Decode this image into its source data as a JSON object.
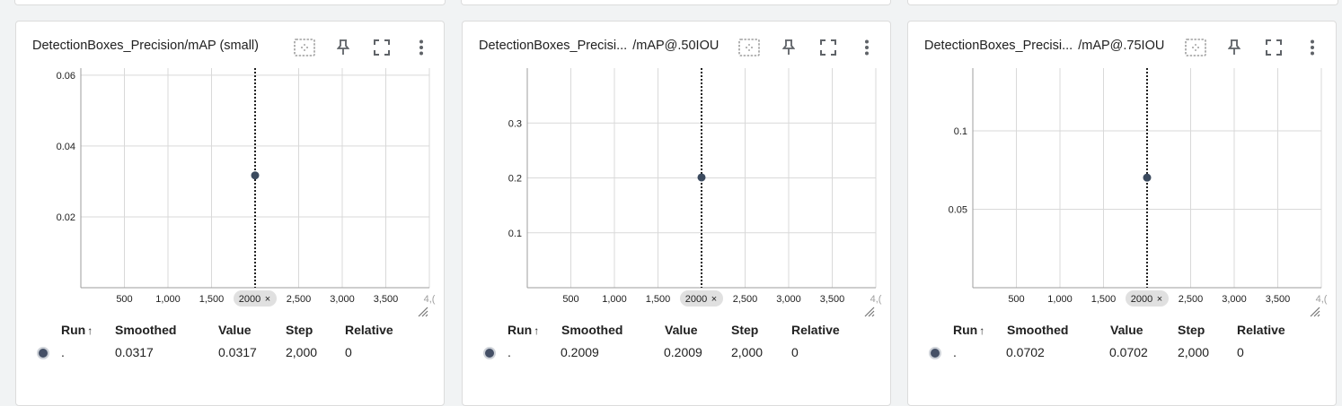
{
  "colors": {
    "accent": "#3b4a5e",
    "grid": "#d9d9d9",
    "axis": "#9e9e9e"
  },
  "icons": [
    "fit-domain-icon",
    "pin-icon",
    "fullscreen-icon",
    "more-vert-icon"
  ],
  "table_headers": {
    "run": "Run",
    "sort": "↑",
    "smoothed": "Smoothed",
    "value": "Value",
    "step": "Step",
    "relative": "Relative"
  },
  "cards": [
    {
      "title": "DetectionBoxes_Precision/mAP (small)",
      "title2": "",
      "row": {
        "run": ".",
        "smoothed": "0.0317",
        "value": "0.0317",
        "step": "2,000",
        "relative": "0"
      },
      "chip": {
        "label": "2000",
        "close": "×"
      }
    },
    {
      "title": "DetectionBoxes_Precisi...",
      "title2": "/mAP@.50IOU",
      "row": {
        "run": ".",
        "smoothed": "0.2009",
        "value": "0.2009",
        "step": "2,000",
        "relative": "0"
      },
      "chip": {
        "label": "2000",
        "close": "×"
      }
    },
    {
      "title": "DetectionBoxes_Precisi...",
      "title2": "/mAP@.75IOU",
      "row": {
        "run": ".",
        "smoothed": "0.0702",
        "value": "0.0702",
        "step": "2,000",
        "relative": "0"
      },
      "chip": {
        "label": "2000",
        "close": "×"
      }
    }
  ],
  "chart_data": [
    {
      "type": "scatter",
      "title": "DetectionBoxes_Precision/mAP (small)",
      "x": [
        2000
      ],
      "y": [
        0.0317
      ],
      "xlim": [
        0,
        4000
      ],
      "ylim": [
        0,
        0.062
      ],
      "xticks": [
        "500",
        "1,000",
        "1,500",
        "2,500",
        "3,000",
        "3,500",
        "4,("
      ],
      "xtick_values": [
        500,
        1000,
        1500,
        2500,
        3000,
        3500,
        4000
      ],
      "yticks": [
        "0.06",
        "0.04",
        "0.02"
      ],
      "ytick_values": [
        0.06,
        0.04,
        0.02
      ],
      "cursor_x": 2000,
      "grid": true
    },
    {
      "type": "scatter",
      "title": "DetectionBoxes_Precisi... /mAP@.50IOU",
      "x": [
        2000
      ],
      "y": [
        0.2009
      ],
      "xlim": [
        0,
        4000
      ],
      "ylim": [
        0,
        0.4
      ],
      "xticks": [
        "500",
        "1,000",
        "1,500",
        "2,500",
        "3,000",
        "3,500",
        "4,("
      ],
      "xtick_values": [
        500,
        1000,
        1500,
        2500,
        3000,
        3500,
        4000
      ],
      "yticks": [
        "0.3",
        "0.2",
        "0.1"
      ],
      "ytick_values": [
        0.3,
        0.2,
        0.1
      ],
      "cursor_x": 2000,
      "grid": true
    },
    {
      "type": "scatter",
      "title": "DetectionBoxes_Precisi... /mAP@.75IOU",
      "x": [
        2000
      ],
      "y": [
        0.0702
      ],
      "xlim": [
        0,
        4000
      ],
      "ylim": [
        0,
        0.14
      ],
      "xticks": [
        "500",
        "1,000",
        "1,500",
        "2,500",
        "3,000",
        "3,500",
        "4,("
      ],
      "xtick_values": [
        500,
        1000,
        1500,
        2500,
        3000,
        3500,
        4000
      ],
      "yticks": [
        "0.1",
        "0.05"
      ],
      "ytick_values": [
        0.1,
        0.05
      ],
      "cursor_x": 2000,
      "grid": true
    }
  ]
}
